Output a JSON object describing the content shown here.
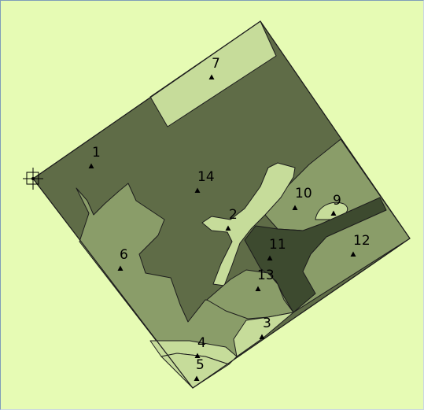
{
  "map": {
    "background_color": "#e6fbb4",
    "boundary_color": "#1c1c1c",
    "zone_colors": {
      "light": "#c6dc9a",
      "medium": "#8a9d69",
      "dark": "#5f6c47",
      "darkest": "#3d4a2f"
    },
    "points": [
      {
        "id": "1",
        "label": "1"
      },
      {
        "id": "2",
        "label": "2"
      },
      {
        "id": "3",
        "label": "3"
      },
      {
        "id": "4",
        "label": "4"
      },
      {
        "id": "5",
        "label": "5"
      },
      {
        "id": "6",
        "label": "6"
      },
      {
        "id": "7",
        "label": "7"
      },
      {
        "id": "9",
        "label": "9"
      },
      {
        "id": "10",
        "label": "10"
      },
      {
        "id": "11",
        "label": "11"
      },
      {
        "id": "12",
        "label": "12"
      },
      {
        "id": "13",
        "label": "13"
      },
      {
        "id": "14",
        "label": "14"
      }
    ],
    "marker_icon": "crosshair-square-icon",
    "point_symbol": "triangle-icon"
  }
}
